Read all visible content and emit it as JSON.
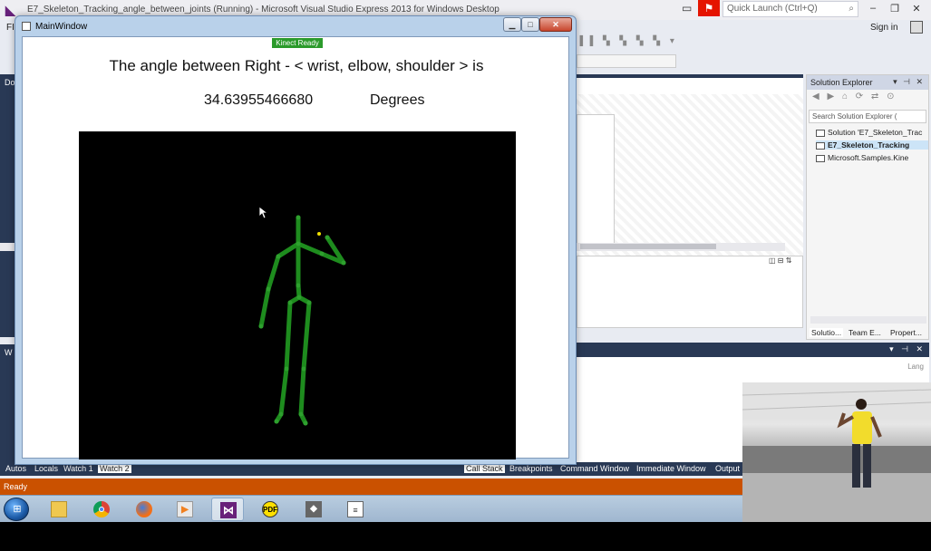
{
  "vs": {
    "title": "E7_Skeleton_Tracking_angle_between_joints (Running) - Microsoft Visual Studio Express 2013 for Windows Desktop",
    "quick_launch_placeholder": "Quick Launch (Ctrl+Q)",
    "signin": "Sign in",
    "menu_file": "FI",
    "left_tab_top": "Do",
    "left_tab_bottom": "W",
    "status": "Ready"
  },
  "solution_explorer": {
    "title": "Solution Explorer",
    "search_placeholder": "Search Solution Explorer (",
    "nodes": [
      "Solution 'E7_Skeleton_Trac",
      "E7_Skeleton_Tracking",
      "Microsoft.Samples.Kine"
    ],
    "tabs": [
      "Solutio...",
      "Team E...",
      "Propert..."
    ]
  },
  "output_panel": {
    "lang": "Lang"
  },
  "bottom_tabs": [
    "Autos",
    "Locals",
    "Watch 1",
    "Watch 2",
    "Call Stack",
    "Breakpoints",
    "Command Window",
    "Immediate Window",
    "Output"
  ],
  "main_window": {
    "title": "MainWindow",
    "kinect_status": "Kinect Ready",
    "angle_label": "The angle between Right - < wrist, elbow, shoulder > is",
    "angle_value": "34.63955466680",
    "angle_unit": "Degrees"
  },
  "skeleton": {
    "bone_color": "#1e8c1e",
    "joint_color": "#2ea02e",
    "tracked_point_color": "#f0e000"
  },
  "taskbar": {
    "apps": [
      "start-button",
      "windows-explorer",
      "chrome",
      "firefox",
      "media-player",
      "visual-studio",
      "pdf-reader",
      "tool",
      "notepad"
    ]
  },
  "colors": {
    "status_bar": "#ca5100",
    "accent_dark": "#293955"
  }
}
